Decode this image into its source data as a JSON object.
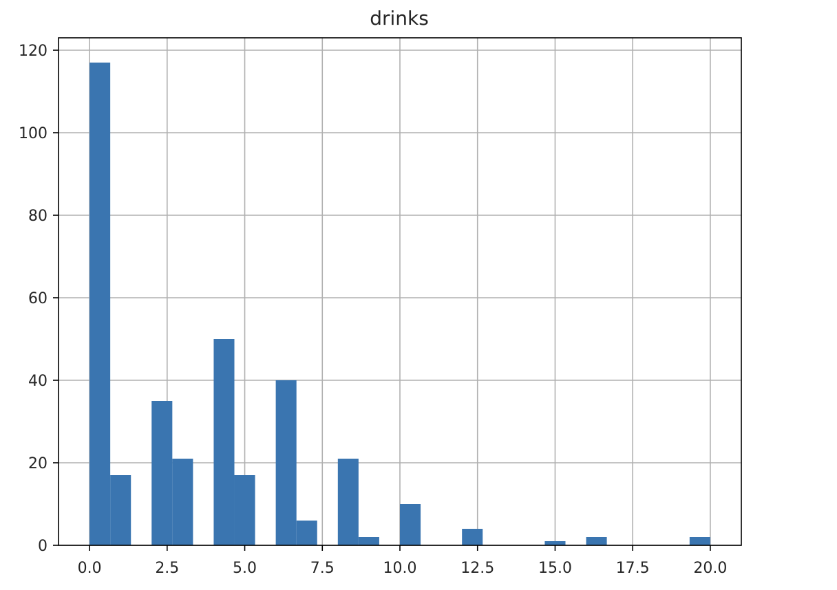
{
  "chart_data": {
    "type": "bar",
    "subtype": "histogram",
    "title": "drinks",
    "xlabel": "",
    "ylabel": "",
    "xlim": [
      -1.0,
      21.0
    ],
    "ylim": [
      0,
      123
    ],
    "grid": true,
    "bar_color": "#3a75b0",
    "bin_width": 0.6667,
    "bins": [
      {
        "start": 0.0,
        "count": 117
      },
      {
        "start": 0.6667,
        "count": 17
      },
      {
        "start": 2.0,
        "count": 35
      },
      {
        "start": 2.6667,
        "count": 21
      },
      {
        "start": 4.0,
        "count": 50
      },
      {
        "start": 4.6667,
        "count": 17
      },
      {
        "start": 6.0,
        "count": 40
      },
      {
        "start": 6.6667,
        "count": 6
      },
      {
        "start": 8.0,
        "count": 21
      },
      {
        "start": 8.6667,
        "count": 2
      },
      {
        "start": 10.0,
        "count": 10
      },
      {
        "start": 12.0,
        "count": 4
      },
      {
        "start": 14.6667,
        "count": 1
      },
      {
        "start": 16.0,
        "count": 2
      },
      {
        "start": 19.3333,
        "count": 2
      }
    ],
    "x_ticks": [
      {
        "value": 0.0,
        "label": "0.0"
      },
      {
        "value": 2.5,
        "label": "2.5"
      },
      {
        "value": 5.0,
        "label": "5.0"
      },
      {
        "value": 7.5,
        "label": "7.5"
      },
      {
        "value": 10.0,
        "label": "10.0"
      },
      {
        "value": 12.5,
        "label": "12.5"
      },
      {
        "value": 15.0,
        "label": "15.0"
      },
      {
        "value": 17.5,
        "label": "17.5"
      },
      {
        "value": 20.0,
        "label": "20.0"
      }
    ],
    "y_ticks": [
      {
        "value": 0,
        "label": "0"
      },
      {
        "value": 20,
        "label": "20"
      },
      {
        "value": 40,
        "label": "40"
      },
      {
        "value": 60,
        "label": "60"
      },
      {
        "value": 80,
        "label": "80"
      },
      {
        "value": 100,
        "label": "100"
      },
      {
        "value": 120,
        "label": "120"
      }
    ]
  }
}
